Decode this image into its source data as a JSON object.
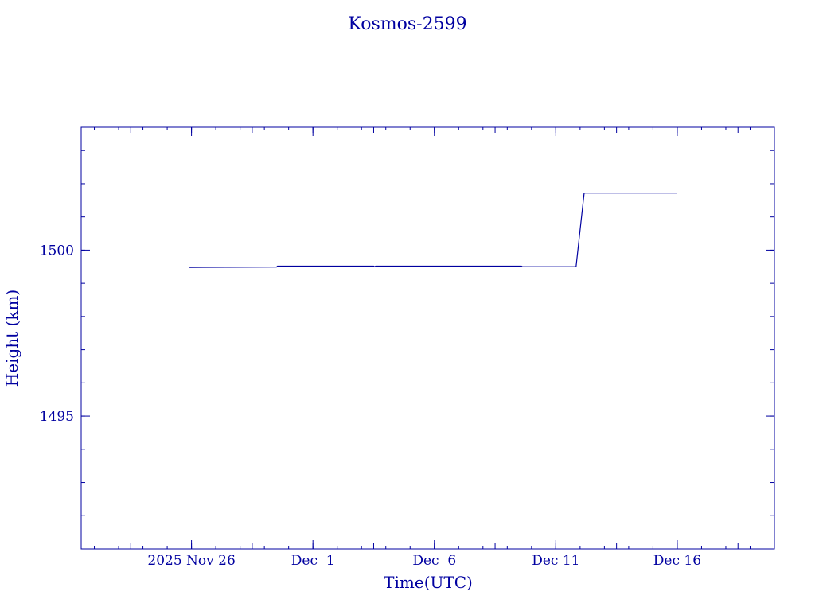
{
  "colors": {
    "ink": "#0000a0",
    "background": "#ffffff"
  },
  "chart_data": {
    "type": "line",
    "title": "Kosmos-2599",
    "xlabel": "Time(UTC)",
    "ylabel": "Height (km)",
    "xlim": [
      "2025-11-21T11:00",
      "2025-12-20T00:00"
    ],
    "ylim": [
      1491.0,
      1503.7
    ],
    "xticks": [
      {
        "date": "2025-11-26",
        "label": "2025 Nov 26"
      },
      {
        "date": "2025-12-01",
        "label": "Dec  1"
      },
      {
        "date": "2025-12-06",
        "label": "Dec  6"
      },
      {
        "date": "2025-12-11",
        "label": "Dec 11"
      },
      {
        "date": "2025-12-16",
        "label": "Dec 16"
      }
    ],
    "yticks": [
      {
        "value": 1495,
        "label": "1495"
      },
      {
        "value": 1500,
        "label": "1500"
      }
    ],
    "grid": false,
    "legend": "none",
    "series": [
      {
        "points": [
          {
            "x": "2025-11-25T22:00",
            "y": 1499.48
          },
          {
            "x": "2025-11-29T12:00",
            "y": 1499.49
          },
          {
            "x": "2025-11-29T13:00",
            "y": 1499.52
          },
          {
            "x": "2025-12-03T12:00",
            "y": 1499.52
          },
          {
            "x": "2025-12-03T13:00",
            "y": 1499.5
          },
          {
            "x": "2025-12-03T14:00",
            "y": 1499.52
          },
          {
            "x": "2025-12-09T14:00",
            "y": 1499.52
          },
          {
            "x": "2025-12-09T15:00",
            "y": 1499.5
          },
          {
            "x": "2025-12-11T20:00",
            "y": 1499.5
          },
          {
            "x": "2025-12-12T04:00",
            "y": 1501.72
          },
          {
            "x": "2025-12-16T00:00",
            "y": 1501.72
          }
        ]
      }
    ]
  }
}
